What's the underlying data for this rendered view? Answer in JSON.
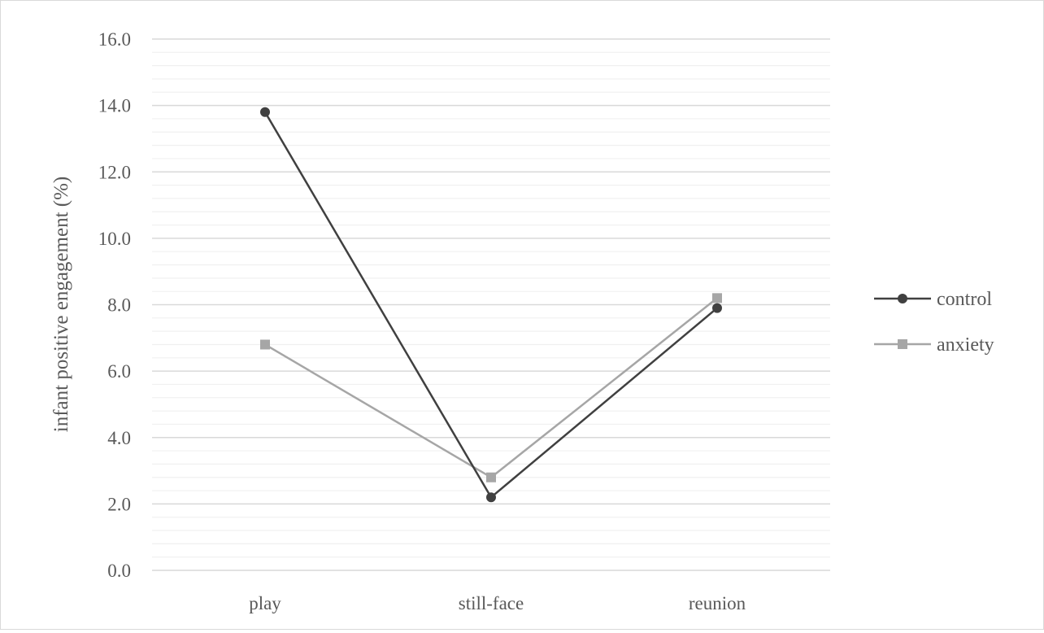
{
  "chart_data": {
    "type": "line",
    "title": "",
    "xlabel": "",
    "ylabel": "infant positive engagement  (%)",
    "categories": [
      "play",
      "still-face",
      "reunion"
    ],
    "ylim": [
      0,
      16
    ],
    "major_tick_step": 2,
    "minor_tick_step": 0.4,
    "y_tick_labels": [
      "0.0",
      "2.0",
      "4.0",
      "6.0",
      "8.0",
      "10.0",
      "12.0",
      "14.0",
      "16.0"
    ],
    "grid": true,
    "legend_position": "right",
    "series": [
      {
        "name": "control",
        "values": [
          13.8,
          2.2,
          7.9
        ],
        "color": "#404040",
        "marker": "circle"
      },
      {
        "name": "anxiety",
        "values": [
          6.8,
          2.8,
          8.2
        ],
        "color": "#a6a6a6",
        "marker": "square"
      }
    ]
  }
}
